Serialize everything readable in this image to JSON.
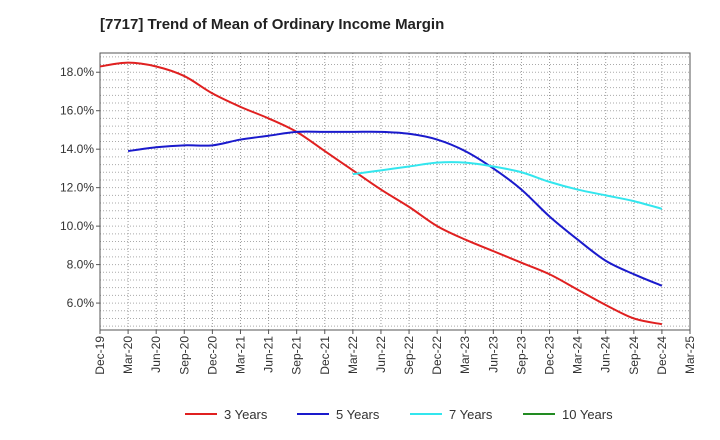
{
  "chart_data": {
    "type": "line",
    "title": "[7717]  Trend of Mean of Ordinary Income Margin",
    "xlabel": "",
    "ylabel": "",
    "x": [
      "Dec-19",
      "Mar-20",
      "Jun-20",
      "Sep-20",
      "Dec-20",
      "Mar-21",
      "Jun-21",
      "Sep-21",
      "Dec-21",
      "Mar-22",
      "Jun-22",
      "Sep-22",
      "Dec-22",
      "Mar-23",
      "Jun-23",
      "Sep-23",
      "Dec-23",
      "Mar-24",
      "Jun-24",
      "Sep-24",
      "Dec-24",
      "Mar-25"
    ],
    "y_ticks": [
      "6.0%",
      "8.0%",
      "10.0%",
      "12.0%",
      "14.0%",
      "16.0%",
      "18.0%"
    ],
    "y_tick_values": [
      6,
      8,
      10,
      12,
      14,
      16,
      18
    ],
    "ylim": [
      4.6,
      19.0
    ],
    "grid": true,
    "legend_position": "bottom",
    "series": [
      {
        "name": "3 Years",
        "color": "#e02020",
        "values": [
          18.3,
          18.5,
          18.3,
          17.8,
          16.9,
          16.2,
          15.6,
          14.9,
          13.9,
          12.9,
          11.9,
          11.0,
          10.0,
          9.3,
          8.7,
          8.1,
          7.5,
          6.7,
          5.9,
          5.2,
          4.9,
          null
        ]
      },
      {
        "name": "5 Years",
        "color": "#1a1acc",
        "values": [
          null,
          13.9,
          14.1,
          14.2,
          14.2,
          14.5,
          14.7,
          14.9,
          14.9,
          14.9,
          14.9,
          14.8,
          14.5,
          13.9,
          13.0,
          11.9,
          10.5,
          9.3,
          8.2,
          7.5,
          6.9,
          null
        ]
      },
      {
        "name": "7 Years",
        "color": "#33e6ee",
        "values": [
          null,
          null,
          null,
          null,
          null,
          null,
          null,
          null,
          null,
          12.7,
          12.9,
          13.1,
          13.3,
          13.3,
          13.1,
          12.8,
          12.3,
          11.9,
          11.6,
          11.3,
          10.9,
          null
        ]
      },
      {
        "name": "10 Years",
        "color": "#228b22",
        "values": [
          null,
          null,
          null,
          null,
          null,
          null,
          null,
          null,
          null,
          null,
          null,
          null,
          null,
          null,
          null,
          null,
          null,
          null,
          null,
          null,
          null,
          null
        ]
      }
    ]
  }
}
